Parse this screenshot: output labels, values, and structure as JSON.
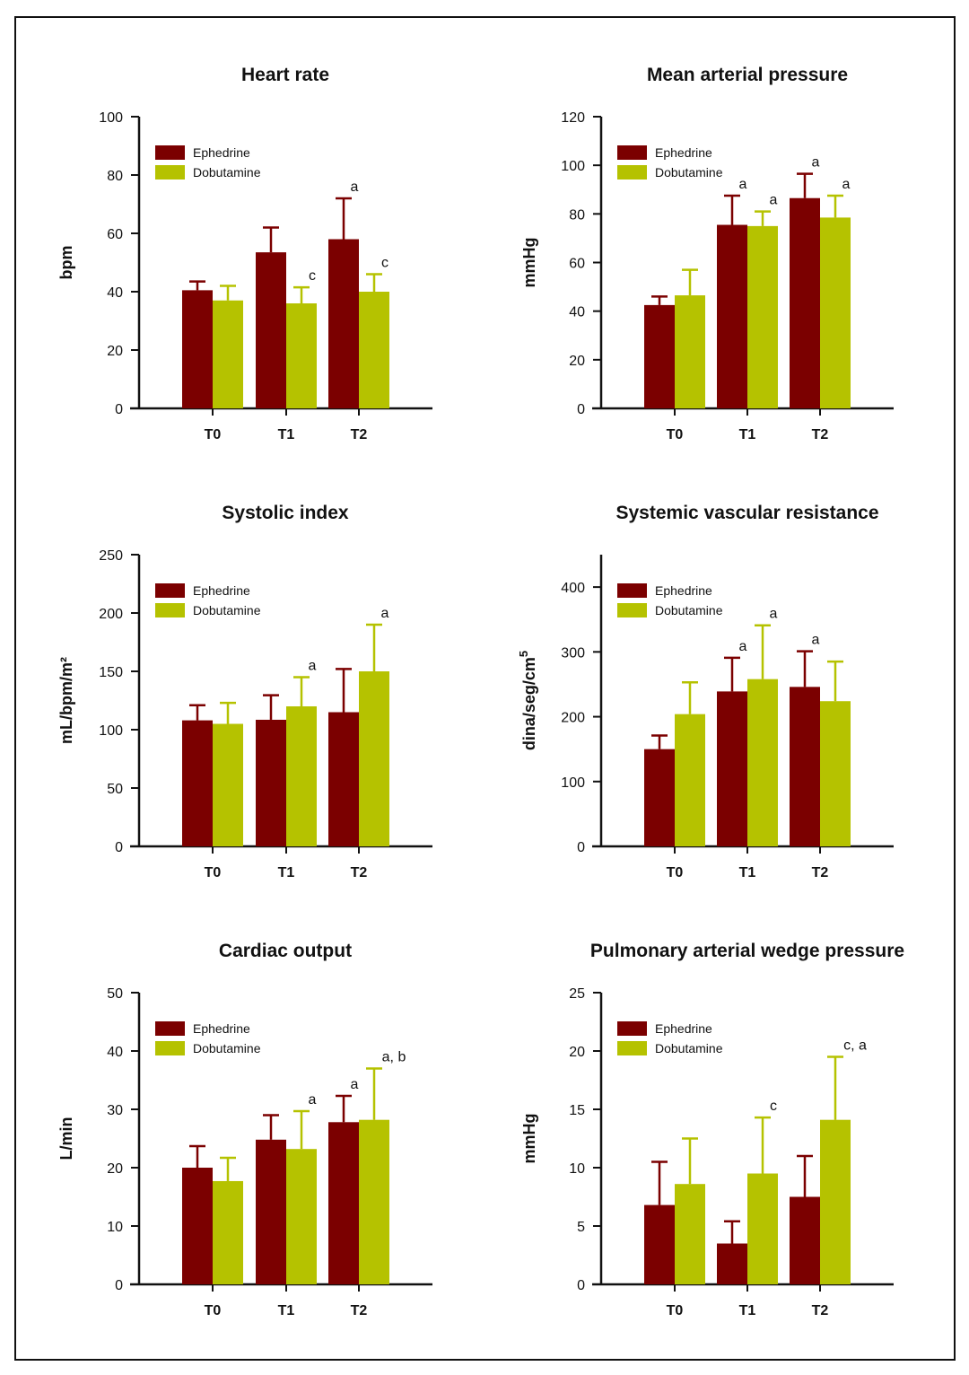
{
  "colors": {
    "Ephedrine": "#7b0000",
    "Dobutamine": "#b5c200"
  },
  "chart_data": [
    {
      "type": "bar",
      "title": "Heart rate",
      "ylabel": "bpm",
      "ylim": [
        0,
        100
      ],
      "yticks": [
        0,
        20,
        40,
        60,
        80,
        100
      ],
      "categories": [
        "T0",
        "T1",
        "T2"
      ],
      "legend": "top-left",
      "series": [
        {
          "name": "Ephedrine",
          "values": [
            40.5,
            53.5,
            58
          ],
          "error": [
            3,
            8.5,
            14
          ]
        },
        {
          "name": "Dobutamine",
          "values": [
            37,
            36,
            40
          ],
          "error": [
            5,
            5.5,
            6
          ]
        }
      ],
      "annotations": [
        {
          "category": "T1",
          "series": "Dobutamine",
          "text": "c"
        },
        {
          "category": "T2",
          "series": "Ephedrine",
          "text": "a"
        },
        {
          "category": "T2",
          "series": "Dobutamine",
          "text": "c"
        }
      ]
    },
    {
      "type": "bar",
      "title": "Mean arterial pressure",
      "ylabel": "mmHg",
      "ylim": [
        0,
        120
      ],
      "yticks": [
        0,
        20,
        40,
        60,
        80,
        100,
        120
      ],
      "categories": [
        "T0",
        "T1",
        "T2"
      ],
      "legend": "top-left",
      "series": [
        {
          "name": "Ephedrine",
          "values": [
            42.5,
            75.5,
            86.5
          ],
          "error": [
            3.5,
            12,
            10
          ]
        },
        {
          "name": "Dobutamine",
          "values": [
            46.5,
            75,
            78.5
          ],
          "error": [
            10.5,
            6,
            9
          ]
        }
      ],
      "annotations": [
        {
          "category": "T1",
          "series": "Ephedrine",
          "text": "a"
        },
        {
          "category": "T1",
          "series": "Dobutamine",
          "text": "a"
        },
        {
          "category": "T2",
          "series": "Ephedrine",
          "text": "a"
        },
        {
          "category": "T2",
          "series": "Dobutamine",
          "text": "a"
        }
      ]
    },
    {
      "type": "bar",
      "title": "Systolic index",
      "ylabel": "mL/bpm/m²",
      "ylim": [
        0,
        250
      ],
      "yticks": [
        0,
        50,
        100,
        150,
        200,
        250
      ],
      "categories": [
        "T0",
        "T1",
        "T2"
      ],
      "legend": "top-left",
      "series": [
        {
          "name": "Ephedrine",
          "values": [
            108,
            108.5,
            115
          ],
          "error": [
            13,
            21,
            37
          ]
        },
        {
          "name": "Dobutamine",
          "values": [
            105,
            120,
            150
          ],
          "error": [
            18,
            25,
            40
          ]
        }
      ],
      "annotations": [
        {
          "category": "T1",
          "series": "Dobutamine",
          "text": "a"
        },
        {
          "category": "T2",
          "series": "Dobutamine",
          "text": "a"
        }
      ]
    },
    {
      "type": "bar",
      "title": "Systemic vascular resistance",
      "ylabel": "dina/seg/cm",
      "ylabel_sup": "5",
      "ylim": [
        0,
        450
      ],
      "yticks": [
        0,
        100,
        200,
        300,
        400
      ],
      "categories": [
        "T0",
        "T1",
        "T2"
      ],
      "legend": "top-left",
      "series": [
        {
          "name": "Ephedrine",
          "values": [
            150,
            239,
            246
          ],
          "error": [
            21,
            52,
            55
          ]
        },
        {
          "name": "Dobutamine",
          "values": [
            204,
            258,
            224
          ],
          "error": [
            49,
            83,
            61
          ]
        }
      ],
      "annotations": [
        {
          "category": "T1",
          "series": "Ephedrine",
          "text": "a"
        },
        {
          "category": "T1",
          "series": "Dobutamine",
          "text": "a"
        },
        {
          "category": "T2",
          "series": "Ephedrine",
          "text": "a"
        }
      ]
    },
    {
      "type": "bar",
      "title": "Cardiac output",
      "ylabel": "L/min",
      "ylim": [
        0,
        50
      ],
      "yticks": [
        0,
        10,
        20,
        30,
        40,
        50
      ],
      "categories": [
        "T0",
        "T1",
        "T2"
      ],
      "legend": "top-left",
      "series": [
        {
          "name": "Ephedrine",
          "values": [
            20,
            24.8,
            27.8
          ],
          "error": [
            3.7,
            4.2,
            4.5
          ]
        },
        {
          "name": "Dobutamine",
          "values": [
            17.7,
            23.2,
            28.2
          ],
          "error": [
            4,
            6.5,
            8.8
          ]
        }
      ],
      "annotations": [
        {
          "category": "T1",
          "series": "Dobutamine",
          "text": "a"
        },
        {
          "category": "T2",
          "series": "Ephedrine",
          "text": "a"
        },
        {
          "category": "T2",
          "series": "Dobutamine",
          "text": "a, b"
        }
      ]
    },
    {
      "type": "bar",
      "title": "Pulmonary arterial wedge pressure",
      "ylabel": "mmHg",
      "ylim": [
        0,
        25
      ],
      "yticks": [
        0,
        5,
        10,
        15,
        20,
        25
      ],
      "categories": [
        "T0",
        "T1",
        "T2"
      ],
      "legend": "top-left",
      "series": [
        {
          "name": "Ephedrine",
          "values": [
            6.8,
            3.5,
            7.5
          ],
          "error": [
            3.7,
            1.9,
            3.5
          ]
        },
        {
          "name": "Dobutamine",
          "values": [
            8.6,
            9.5,
            14.1
          ],
          "error": [
            3.9,
            4.8,
            5.4
          ]
        }
      ],
      "annotations": [
        {
          "category": "T1",
          "series": "Dobutamine",
          "text": "c"
        },
        {
          "category": "T2",
          "series": "Dobutamine",
          "text": "c, a"
        }
      ]
    }
  ]
}
